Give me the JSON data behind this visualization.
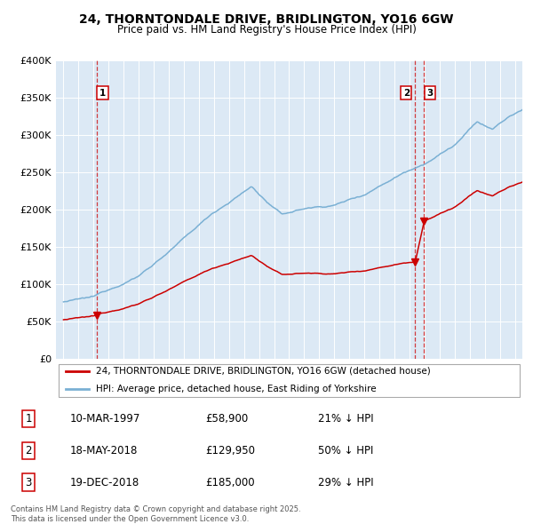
{
  "title": "24, THORNTONDALE DRIVE, BRIDLINGTON, YO16 6GW",
  "subtitle": "Price paid vs. HM Land Registry's House Price Index (HPI)",
  "bg_color": "#dce9f5",
  "red_line_label": "24, THORNTONDALE DRIVE, BRIDLINGTON, YO16 6GW (detached house)",
  "blue_line_label": "HPI: Average price, detached house, East Riding of Yorkshire",
  "transactions": [
    {
      "num": "1",
      "date": "10-MAR-1997",
      "price": "£58,900",
      "pct": "21% ↓ HPI",
      "year": 1997.19,
      "sale_price": 58900
    },
    {
      "num": "2",
      "date": "18-MAY-2018",
      "price": "£129,950",
      "pct": "50% ↓ HPI",
      "year": 2018.38,
      "sale_price": 129950
    },
    {
      "num": "3",
      "date": "19-DEC-2018",
      "price": "£185,000",
      "pct": "29% ↓ HPI",
      "year": 2018.97,
      "sale_price": 185000
    }
  ],
  "footer": "Contains HM Land Registry data © Crown copyright and database right 2025.\nThis data is licensed under the Open Government Licence v3.0.",
  "ylim": [
    0,
    400000
  ],
  "yticks": [
    0,
    50000,
    100000,
    150000,
    200000,
    250000,
    300000,
    350000,
    400000
  ],
  "ytick_labels": [
    "£0",
    "£50K",
    "£100K",
    "£150K",
    "£200K",
    "£250K",
    "£300K",
    "£350K",
    "£400K"
  ],
  "xlim_start": 1994.5,
  "xlim_end": 2025.5,
  "hpi_color": "#7ab0d4",
  "prop_color": "#cc0000",
  "vline_color": "#cc0000"
}
